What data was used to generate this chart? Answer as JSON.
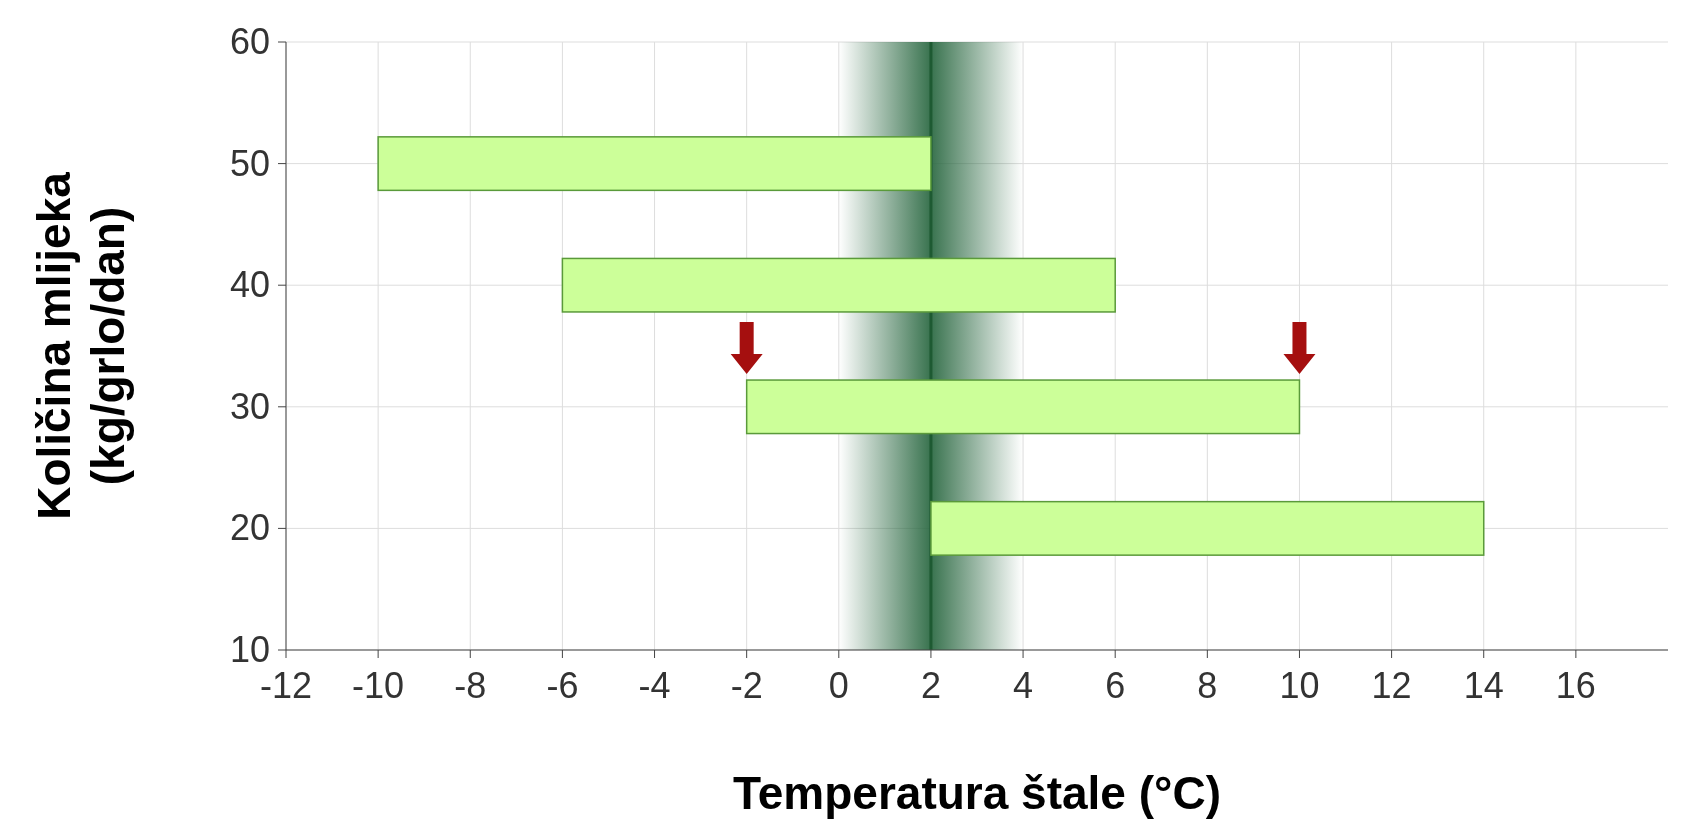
{
  "chart_data": {
    "type": "bar",
    "orientation": "horizontal",
    "xlabel": "Temperatura štale (°C)",
    "ylabel": "Količina mlijeka\n(kg/grlo/dan)",
    "categories": [
      "60",
      "50",
      "40",
      "30",
      "20",
      "10"
    ],
    "values": [
      null,
      12,
      12,
      12,
      12,
      null
    ],
    "base": [
      null,
      -10,
      -6,
      -2,
      2,
      null
    ],
    "color": "#ccff99",
    "xlim": [
      -12,
      18
    ],
    "xticks": [
      -12,
      -10,
      -8,
      -6,
      -4,
      -2,
      0,
      2,
      4,
      6,
      8,
      10,
      12,
      14,
      16
    ],
    "ref_lines": [
      {
        "axis": "x",
        "value": 2,
        "color": "#1e5a32"
      }
    ],
    "bands": [
      {
        "axis": "x",
        "from": 0,
        "to": 4,
        "color": "#2e6b45"
      }
    ],
    "grid": true
  }
}
